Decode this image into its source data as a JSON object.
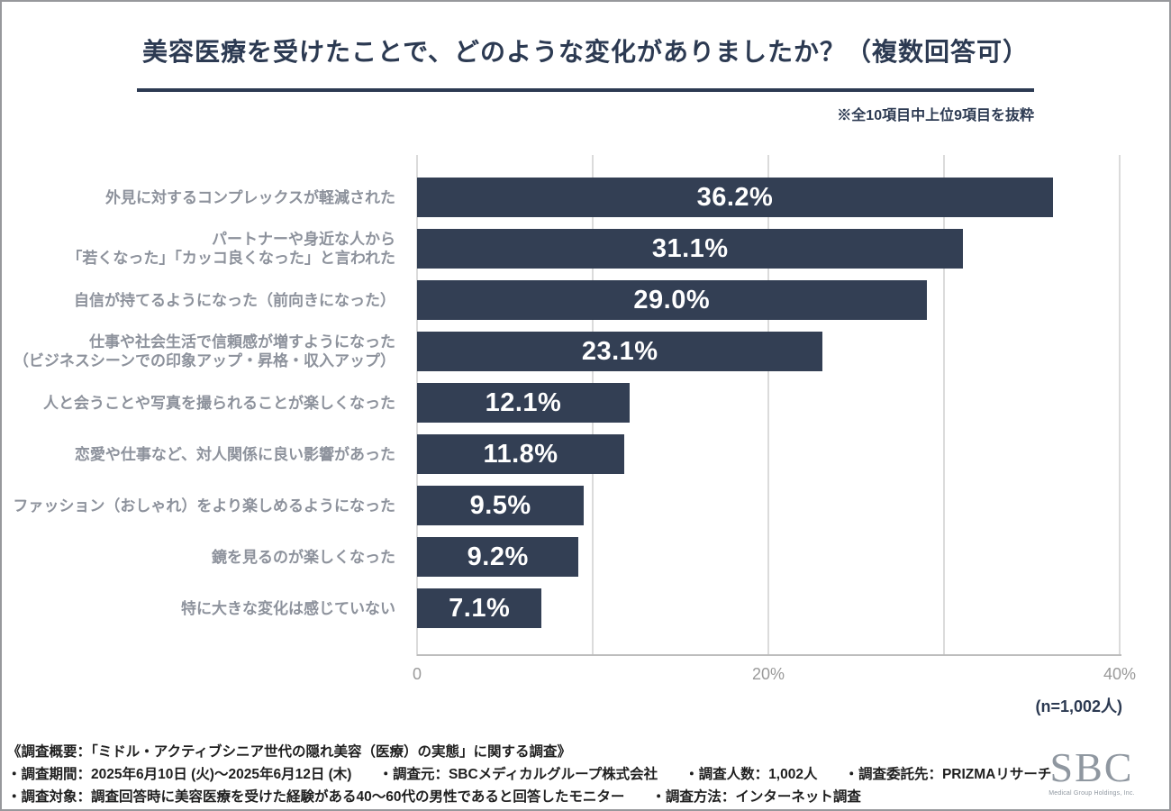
{
  "title": "美容医療を受けたことで、どのような変化がありましたか？（複数回答可）",
  "excerpt_note": "※全10項目中上位9項目を抜粋",
  "sample_size_label": "(n=1,002人)",
  "colors": {
    "accent_navy": "#2C3A52",
    "bar": "#333F54",
    "category_label": "#8D929C",
    "axis_text": "#9A9A9A",
    "gridline": "#DBDBDB",
    "footer_text": "#1F1F1F",
    "logo_gray": "#8F97A0"
  },
  "chart_data": {
    "type": "bar",
    "orientation": "horizontal",
    "title": "美容医療を受けたことで、どのような変化がありましたか？（複数回答可）",
    "categories": [
      "外見に対するコンプレックスが軽減された",
      "パートナーや身近な人から「若くなった」「カッコ良くなった」と言われた",
      "自信が持てるようになった（前向きになった）",
      "仕事や社会生活で信頼感が増すようになった（ビジネスシーンでの印象アップ・昇格・収入アップ）",
      "人と会うことや写真を撮られることが楽しくなった",
      "恋愛や仕事など、対人関係に良い影響があった",
      "ファッション（おしゃれ）をより楽しめるようになった",
      "鏡を見るのが楽しくなった",
      "特に大きな変化は感じていない"
    ],
    "category_lines": [
      [
        "外見に対するコンプレックスが軽減された"
      ],
      [
        "パートナーや身近な人から",
        "「若くなった」「カッコ良くなった」と言われた"
      ],
      [
        "自信が持てるようになった（前向きになった）"
      ],
      [
        "仕事や社会生活で信頼感が増すようになった",
        "（ビジネスシーンでの印象アップ・昇格・収入アップ）"
      ],
      [
        "人と会うことや写真を撮られることが楽しくなった"
      ],
      [
        "恋愛や仕事など、対人関係に良い影響があった"
      ],
      [
        "ファッション（おしゃれ）をより楽しめるようになった"
      ],
      [
        "鏡を見るのが楽しくなった"
      ],
      [
        "特に大きな変化は感じていない"
      ]
    ],
    "values": [
      36.2,
      31.1,
      29.0,
      23.1,
      12.1,
      11.8,
      9.5,
      9.2,
      7.1
    ],
    "value_labels": [
      "36.2%",
      "31.1%",
      "29.0%",
      "23.1%",
      "12.1%",
      "11.8%",
      "9.5%",
      "9.2%",
      "7.1%"
    ],
    "xlim": [
      0,
      40
    ],
    "xticks": [
      {
        "label": "0",
        "value": 0
      },
      {
        "label": "20%",
        "value": 20
      },
      {
        "label": "40%",
        "value": 40
      }
    ],
    "gridlines": [
      0,
      10,
      20,
      30,
      40
    ],
    "grid": true,
    "legend": false,
    "xlabel": "",
    "ylabel": "",
    "bar_color": "#333F54",
    "sample_size": "n=1,002人"
  },
  "footer": {
    "heading": "《調査概要：「ミドル・アクティブシニア世代の隠れ美容（医療）の実態」に関する調査》",
    "line2": [
      "・調査期間：2025年6月10日 (火)～2025年6月12日 (木)",
      "・調査元：SBCメディカルグループ株式会社",
      "・調査人数：1,002人",
      "・調査委託先：PRIZMAリサーチ"
    ],
    "line3": [
      "・調査対象：調査回答時に美容医療を受けた経験がある40～60代の男性であると回答したモニター",
      "・調査方法：インターネット調査"
    ]
  },
  "logo": {
    "text": "SBC",
    "caption": "Medical Group Holdings, Inc."
  }
}
